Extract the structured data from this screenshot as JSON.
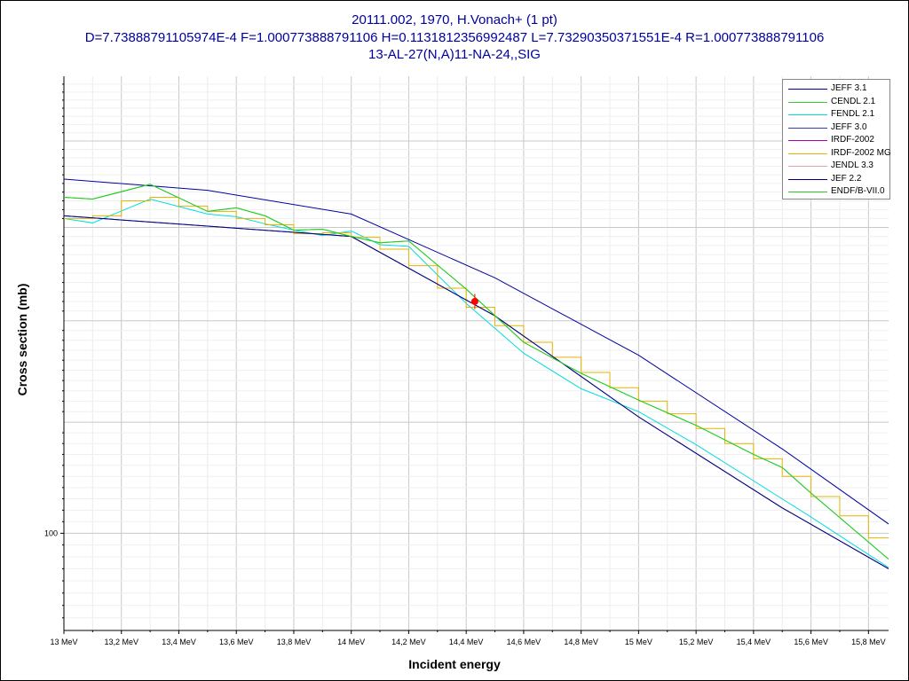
{
  "titles": {
    "line1": "20111.002, 1970, H.Vonach+ (1 pt)",
    "line2": "D=7.73888791105974E-4 F=1.000773888791106 H=0.1131812356992487 L=7.73290350371551E-4 R=1.000773888791106",
    "line3": "13-AL-27(N,A)11-NA-24,,SIG"
  },
  "chart_data": {
    "type": "line",
    "xlabel": "Incident energy",
    "ylabel": "Cross section (mb)",
    "x_unit": "MeV",
    "xlim": [
      13.0,
      15.87
    ],
    "ylim": [
      92,
      148
    ],
    "y_scale": "log",
    "grid": true,
    "legend_position": "top-right",
    "x_ticks": [
      "13 MeV",
      "13,2 MeV",
      "13,4 MeV",
      "13,6 MeV",
      "13,8 MeV",
      "14 MeV",
      "14,2 MeV",
      "14,4 MeV",
      "14,6 MeV",
      "14,8 MeV",
      "15 MeV",
      "15,2 MeV",
      "15,4 MeV",
      "15,6 MeV",
      "15,8 MeV"
    ],
    "y_ticks": [
      {
        "value": 100,
        "label": "100"
      }
    ],
    "series": [
      {
        "name": "JEFF 3.1",
        "color": "#0000a0",
        "x": [
          13.0,
          13.5,
          14.0,
          14.5,
          15.0,
          15.5,
          15.87
        ],
        "y": [
          135.5,
          134.2,
          131.5,
          124.5,
          116.5,
          107.5,
          100.8
        ]
      },
      {
        "name": "CENDL 2.1",
        "color": "#33cc33",
        "x": [
          13.0,
          13.1,
          13.3,
          13.5,
          13.6,
          13.7,
          13.8,
          13.9,
          14.0,
          14.1,
          14.2,
          14.4,
          14.6,
          14.8,
          15.0,
          15.2,
          15.4,
          15.5,
          15.6,
          15.87
        ],
        "y": [
          133.4,
          133.2,
          134.9,
          131.8,
          132.2,
          131.3,
          129.7,
          129.8,
          129.0,
          128.3,
          128.5,
          123.3,
          117.8,
          114.7,
          112.1,
          109.7,
          107.0,
          105.8,
          103.5,
          97.8
        ]
      },
      {
        "name": "FENDL 2.1",
        "color": "#00dddd",
        "x": [
          13.0,
          13.1,
          13.3,
          13.5,
          13.6,
          13.7,
          13.8,
          13.9,
          14.0,
          14.1,
          14.2,
          14.4,
          14.6,
          14.8,
          15.0,
          15.2,
          15.4,
          15.6,
          15.87
        ],
        "y": [
          131.0,
          130.5,
          133.2,
          131.5,
          131.2,
          130.4,
          129.7,
          129.1,
          129.6,
          128.1,
          127.9,
          121.8,
          116.7,
          113.2,
          111.0,
          107.9,
          104.6,
          101.4,
          97.1
        ]
      },
      {
        "name": "JEFF 3.0",
        "color": "#3a3aa0",
        "x": [
          13.0,
          14.0,
          14.5,
          15.0,
          15.5,
          15.87
        ],
        "y": [
          131.3,
          129.0,
          120.5,
          110.5,
          102.2,
          97.0
        ]
      },
      {
        "name": "IRDF-2002",
        "color": "#aa00aa",
        "x": [],
        "y": []
      },
      {
        "name": "IRDF-2002 MG",
        "color": "#e6b400",
        "x": [
          13.0,
          13.1,
          13.2,
          13.3,
          13.4,
          13.5,
          13.6,
          13.7,
          13.8,
          13.9,
          14.0,
          14.1,
          14.2,
          14.3,
          14.4,
          14.5,
          14.6,
          14.7,
          14.8,
          14.9,
          15.0,
          15.1,
          15.2,
          15.3,
          15.4,
          15.5,
          15.6,
          15.7,
          15.8,
          15.87
        ],
        "y": [
          131.0,
          131.3,
          133.0,
          133.4,
          132.4,
          131.8,
          131.0,
          130.3,
          129.3,
          129.4,
          128.9,
          127.6,
          125.8,
          123.4,
          121.4,
          119.5,
          117.8,
          116.3,
          114.8,
          113.3,
          112.0,
          110.8,
          109.4,
          108.0,
          106.6,
          105.0,
          103.2,
          101.5,
          99.6,
          99.6
        ]
      },
      {
        "name": "JENDL 3.3",
        "color": "#e8a0a8",
        "x": [],
        "y": []
      },
      {
        "name": "JEF 2.2",
        "color": "#000080",
        "x": [
          13.0,
          14.0,
          14.5,
          15.0,
          15.5,
          15.87
        ],
        "y": [
          131.3,
          129.0,
          120.5,
          110.5,
          102.2,
          97.0
        ]
      },
      {
        "name": "ENDF/B-VII.0",
        "color": "#22cc22",
        "x": [
          13.0,
          13.1,
          13.3,
          13.5,
          13.6,
          13.7,
          13.8,
          13.9,
          14.0,
          14.1,
          14.2,
          14.4,
          14.6,
          14.8,
          15.0,
          15.2,
          15.4,
          15.5,
          15.6,
          15.87
        ],
        "y": [
          133.4,
          133.2,
          134.9,
          131.8,
          132.2,
          131.3,
          129.7,
          129.8,
          129.0,
          128.3,
          128.5,
          123.3,
          117.8,
          114.7,
          112.1,
          109.7,
          107.0,
          105.8,
          103.5,
          97.8
        ]
      }
    ],
    "experimental_points": [
      {
        "x": 14.43,
        "y": 122.0,
        "y_err": 0.8,
        "color": "#ff0000"
      }
    ]
  }
}
